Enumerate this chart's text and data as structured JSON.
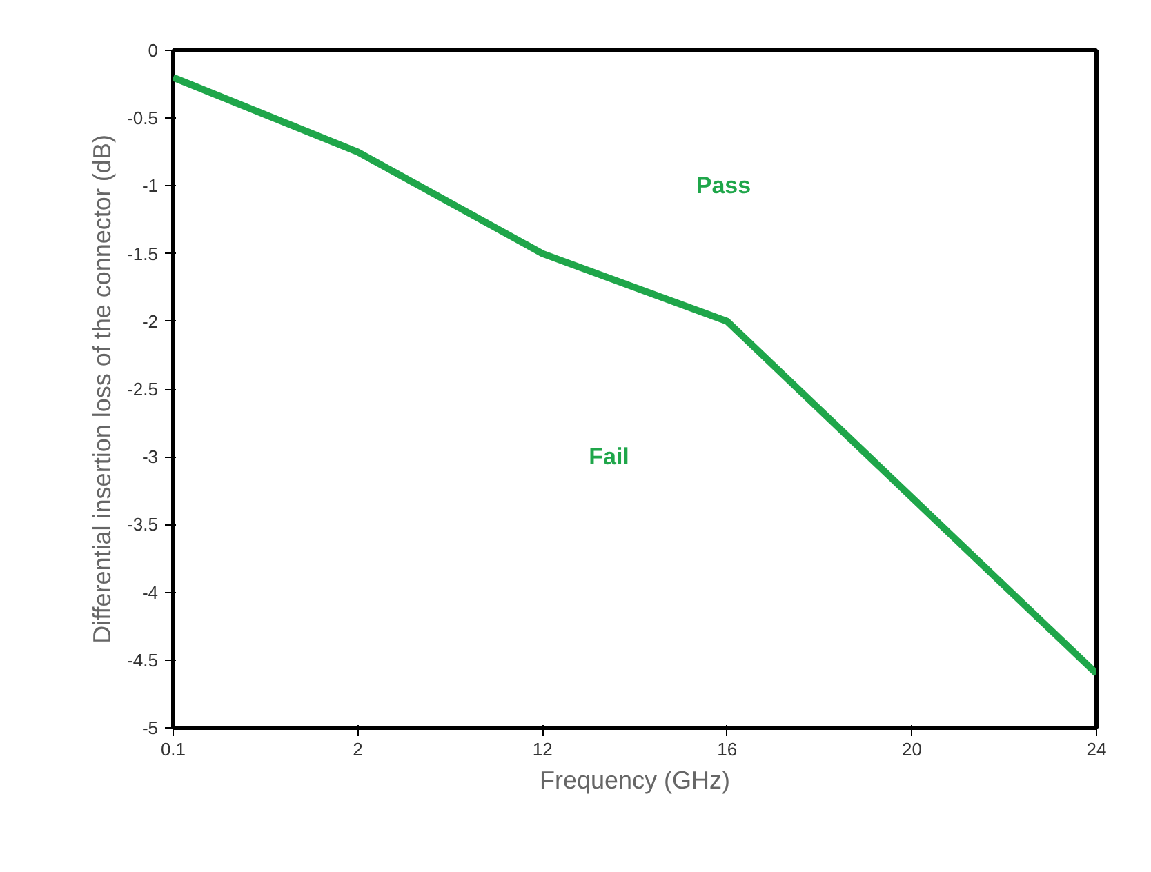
{
  "chart_data": {
    "type": "line",
    "xlabel": "Frequency (GHz)",
    "ylabel": "Differential insertion loss of the connector (dB)",
    "categories": [
      "0.1",
      "2",
      "12",
      "16",
      "20",
      "24"
    ],
    "series": [
      {
        "color": "#1fa64a",
        "values": [
          -0.2,
          -0.75,
          -1.5,
          -2.0,
          -3.3,
          -4.6
        ]
      }
    ],
    "ylim": [
      -5,
      0
    ],
    "yticks": [
      -5,
      -4.5,
      -4,
      -3.5,
      -3,
      -2.5,
      -2,
      -1.5,
      -1,
      -0.5,
      0
    ],
    "annotations": [
      "Pass",
      "Fail"
    ],
    "grid": false,
    "marker": "none",
    "line_style": "solid"
  }
}
